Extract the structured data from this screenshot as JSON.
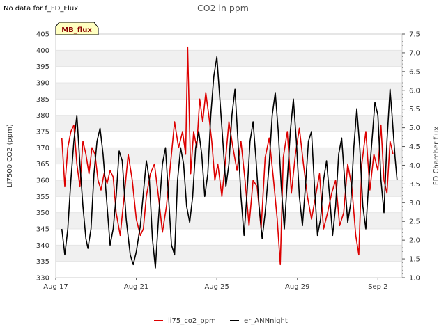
{
  "status_text": "No data for f_FD_Flux",
  "badge_label": "MB_flux",
  "chart_data": {
    "type": "line",
    "title": "CO2 in ppm",
    "ylabel_left": "LI7500 CO2 (ppm)",
    "ylabel_right": "FD Chamber flux",
    "x_ticks": [
      "Aug 17",
      "Aug 21",
      "Aug 25",
      "Aug 29",
      "Sep 2"
    ],
    "x_range_days": [
      0,
      17.2
    ],
    "y_left_ticks": [
      330,
      335,
      340,
      345,
      350,
      355,
      360,
      365,
      370,
      375,
      380,
      385,
      390,
      395,
      400,
      405
    ],
    "ylim_left": [
      330,
      405
    ],
    "y_right_ticks": [
      "1.0",
      "1.5",
      "2.0",
      "2.5",
      "3.0",
      "3.5",
      "4.0",
      "4.5",
      "5.0",
      "5.5",
      "6.0",
      "6.5",
      "7.0",
      "7.5"
    ],
    "ylim_right": [
      1.0,
      7.5
    ],
    "series": [
      {
        "name": "li75_co2_ppm",
        "color": "#dd0000",
        "points": [
          [
            0.3,
            373
          ],
          [
            0.45,
            358
          ],
          [
            0.6,
            370
          ],
          [
            0.75,
            375
          ],
          [
            0.9,
            377
          ],
          [
            1.05,
            365
          ],
          [
            1.2,
            358
          ],
          [
            1.35,
            372
          ],
          [
            1.5,
            368
          ],
          [
            1.65,
            362
          ],
          [
            1.8,
            370
          ],
          [
            1.95,
            368
          ],
          [
            2.1,
            360
          ],
          [
            2.25,
            357
          ],
          [
            2.4,
            362
          ],
          [
            2.55,
            359
          ],
          [
            2.7,
            363
          ],
          [
            2.85,
            361
          ],
          [
            3.0,
            350
          ],
          [
            3.2,
            343
          ],
          [
            3.4,
            355
          ],
          [
            3.6,
            368
          ],
          [
            3.8,
            360
          ],
          [
            4.0,
            348
          ],
          [
            4.2,
            343
          ],
          [
            4.35,
            345
          ],
          [
            4.5,
            355
          ],
          [
            4.7,
            362
          ],
          [
            4.9,
            365
          ],
          [
            5.1,
            355
          ],
          [
            5.3,
            344
          ],
          [
            5.5,
            352
          ],
          [
            5.7,
            365
          ],
          [
            5.9,
            378
          ],
          [
            6.1,
            370
          ],
          [
            6.3,
            375
          ],
          [
            6.45,
            368
          ],
          [
            6.55,
            401
          ],
          [
            6.7,
            362
          ],
          [
            6.85,
            375
          ],
          [
            7.0,
            370
          ],
          [
            7.15,
            385
          ],
          [
            7.3,
            378
          ],
          [
            7.45,
            387
          ],
          [
            7.6,
            380
          ],
          [
            7.75,
            372
          ],
          [
            7.9,
            360
          ],
          [
            8.05,
            365
          ],
          [
            8.25,
            355
          ],
          [
            8.4,
            364
          ],
          [
            8.6,
            378
          ],
          [
            8.8,
            370
          ],
          [
            9.0,
            363
          ],
          [
            9.2,
            372
          ],
          [
            9.4,
            360
          ],
          [
            9.6,
            346
          ],
          [
            9.8,
            360
          ],
          [
            10.0,
            358
          ],
          [
            10.2,
            345
          ],
          [
            10.4,
            367
          ],
          [
            10.6,
            373
          ],
          [
            10.8,
            361
          ],
          [
            11.0,
            348
          ],
          [
            11.15,
            334
          ],
          [
            11.3,
            367
          ],
          [
            11.5,
            375
          ],
          [
            11.7,
            356
          ],
          [
            11.9,
            368
          ],
          [
            12.1,
            376
          ],
          [
            12.3,
            365
          ],
          [
            12.5,
            355
          ],
          [
            12.7,
            348
          ],
          [
            12.9,
            355
          ],
          [
            13.1,
            362
          ],
          [
            13.3,
            345
          ],
          [
            13.5,
            350
          ],
          [
            13.7,
            356
          ],
          [
            13.9,
            360
          ],
          [
            14.1,
            346
          ],
          [
            14.3,
            350
          ],
          [
            14.5,
            365
          ],
          [
            14.7,
            358
          ],
          [
            14.9,
            343
          ],
          [
            15.05,
            337
          ],
          [
            15.2,
            365
          ],
          [
            15.4,
            375
          ],
          [
            15.6,
            357
          ],
          [
            15.8,
            368
          ],
          [
            16.0,
            363
          ],
          [
            16.15,
            377
          ],
          [
            16.3,
            360
          ],
          [
            16.45,
            356
          ],
          [
            16.6,
            372
          ],
          [
            16.75,
            368
          ]
        ]
      },
      {
        "name": "er_ANNnight",
        "color": "#000000",
        "points": [
          [
            0.3,
            345
          ],
          [
            0.45,
            337
          ],
          [
            0.6,
            345
          ],
          [
            0.75,
            360
          ],
          [
            0.9,
            372
          ],
          [
            1.05,
            380
          ],
          [
            1.2,
            365
          ],
          [
            1.35,
            352
          ],
          [
            1.5,
            342
          ],
          [
            1.6,
            339
          ],
          [
            1.75,
            345
          ],
          [
            1.9,
            362
          ],
          [
            2.05,
            372
          ],
          [
            2.2,
            376
          ],
          [
            2.35,
            368
          ],
          [
            2.55,
            352
          ],
          [
            2.7,
            340
          ],
          [
            2.85,
            345
          ],
          [
            3.0,
            355
          ],
          [
            3.15,
            369
          ],
          [
            3.3,
            366
          ],
          [
            3.5,
            348
          ],
          [
            3.7,
            337
          ],
          [
            3.85,
            334
          ],
          [
            4.0,
            338
          ],
          [
            4.2,
            346
          ],
          [
            4.35,
            356
          ],
          [
            4.5,
            366
          ],
          [
            4.65,
            360
          ],
          [
            4.8,
            342
          ],
          [
            4.95,
            333
          ],
          [
            5.1,
            348
          ],
          [
            5.3,
            365
          ],
          [
            5.45,
            370
          ],
          [
            5.6,
            355
          ],
          [
            5.75,
            340
          ],
          [
            5.9,
            337
          ],
          [
            6.05,
            360
          ],
          [
            6.2,
            370
          ],
          [
            6.35,
            365
          ],
          [
            6.5,
            352
          ],
          [
            6.65,
            347
          ],
          [
            6.8,
            355
          ],
          [
            6.95,
            370
          ],
          [
            7.1,
            375
          ],
          [
            7.25,
            368
          ],
          [
            7.4,
            355
          ],
          [
            7.55,
            362
          ],
          [
            7.7,
            380
          ],
          [
            7.85,
            392
          ],
          [
            8.0,
            398
          ],
          [
            8.15,
            385
          ],
          [
            8.3,
            372
          ],
          [
            8.45,
            358
          ],
          [
            8.6,
            365
          ],
          [
            8.75,
            380
          ],
          [
            8.9,
            388
          ],
          [
            9.05,
            372
          ],
          [
            9.2,
            355
          ],
          [
            9.35,
            343
          ],
          [
            9.5,
            356
          ],
          [
            9.65,
            372
          ],
          [
            9.8,
            378
          ],
          [
            9.95,
            366
          ],
          [
            10.1,
            352
          ],
          [
            10.25,
            342
          ],
          [
            10.4,
            350
          ],
          [
            10.6,
            365
          ],
          [
            10.75,
            380
          ],
          [
            10.9,
            387
          ],
          [
            11.05,
            375
          ],
          [
            11.2,
            358
          ],
          [
            11.35,
            345
          ],
          [
            11.5,
            360
          ],
          [
            11.65,
            375
          ],
          [
            11.8,
            385
          ],
          [
            11.95,
            372
          ],
          [
            12.1,
            355
          ],
          [
            12.25,
            346
          ],
          [
            12.4,
            358
          ],
          [
            12.55,
            372
          ],
          [
            12.7,
            375
          ],
          [
            12.85,
            358
          ],
          [
            13.0,
            343
          ],
          [
            13.15,
            348
          ],
          [
            13.3,
            360
          ],
          [
            13.45,
            366
          ],
          [
            13.6,
            355
          ],
          [
            13.75,
            343
          ],
          [
            13.9,
            352
          ],
          [
            14.05,
            368
          ],
          [
            14.2,
            373
          ],
          [
            14.35,
            360
          ],
          [
            14.5,
            347
          ],
          [
            14.65,
            353
          ],
          [
            14.8,
            370
          ],
          [
            14.95,
            382
          ],
          [
            15.1,
            370
          ],
          [
            15.25,
            352
          ],
          [
            15.4,
            345
          ],
          [
            15.55,
            360
          ],
          [
            15.7,
            372
          ],
          [
            15.85,
            384
          ],
          [
            16.0,
            380
          ],
          [
            16.15,
            360
          ],
          [
            16.3,
            350
          ],
          [
            16.45,
            372
          ],
          [
            16.6,
            388
          ],
          [
            16.7,
            380
          ],
          [
            16.85,
            367
          ],
          [
            16.95,
            360
          ]
        ]
      }
    ]
  }
}
